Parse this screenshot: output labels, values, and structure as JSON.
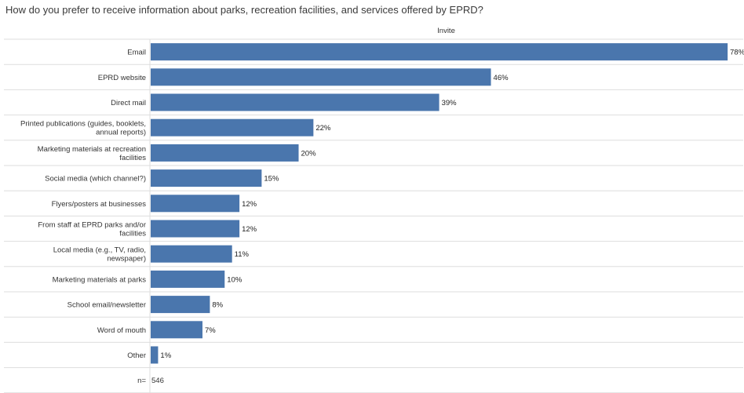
{
  "chart_data": {
    "type": "bar",
    "orientation": "horizontal",
    "title": "How do you prefer to receive information about parks, recreation facilities, and services offered by EPRD?",
    "series_header": "Invite",
    "categories": [
      "Email",
      "EPRD website",
      "Direct mail",
      "Printed publications (guides, booklets, annual reports)",
      "Marketing materials at recreation facilities",
      "Social media (which channel?)",
      "Flyers/posters at businesses",
      "From staff at EPRD parks and/or facilities",
      "Local media (e.g., TV, radio, newspaper)",
      "Marketing materials at parks",
      "School email/newsletter",
      "Word of mouth",
      "Other"
    ],
    "category_lines": [
      [
        "Email"
      ],
      [
        "EPRD website"
      ],
      [
        "Direct mail"
      ],
      [
        "Printed publications (guides, booklets,",
        "annual reports)"
      ],
      [
        "Marketing materials at recreation",
        "facilities"
      ],
      [
        "Social media (which channel?)"
      ],
      [
        "Flyers/posters at businesses"
      ],
      [
        "From staff at EPRD parks and/or",
        "facilities"
      ],
      [
        "Local media (e.g., TV, radio,",
        "newspaper)"
      ],
      [
        "Marketing materials at parks"
      ],
      [
        "School email/newsletter"
      ],
      [
        "Word of mouth"
      ],
      [
        "Other"
      ]
    ],
    "values": [
      78,
      46,
      39,
      22,
      20,
      15,
      12,
      12,
      11,
      10,
      8,
      7,
      1
    ],
    "value_labels": [
      "78%",
      "46%",
      "39%",
      "22%",
      "20%",
      "15%",
      "12%",
      "12%",
      "11%",
      "10%",
      "8%",
      "7%",
      "1%"
    ],
    "xlim": [
      0,
      80
    ],
    "n_label": "n=",
    "n_value": "546",
    "bar_color": "#4a76ad",
    "grid_color": "#dddddd"
  }
}
